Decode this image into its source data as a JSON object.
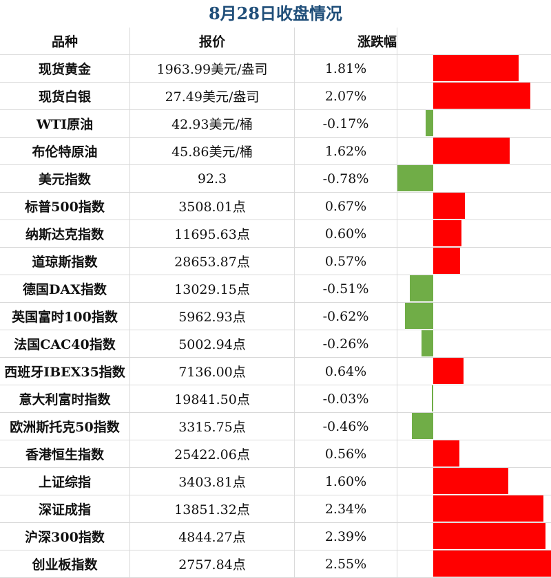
{
  "title": "8月28日收盘情况",
  "colors": {
    "up": "#ff0000",
    "down": "#70ad47",
    "title": "#1f4e79"
  },
  "headers": [
    "品种",
    "报价",
    "涨跌幅"
  ],
  "rows": [
    {
      "name": "现货黄金",
      "price": "1963.99美元/盎司",
      "change": "1.81%",
      "value": 1.81
    },
    {
      "name": "现货白银",
      "price": "27.49美元/盎司",
      "change": "2.07%",
      "value": 2.07
    },
    {
      "name": "WTI原油",
      "price": "42.93美元/桶",
      "change": "-0.17%",
      "value": -0.17
    },
    {
      "name": "布伦特原油",
      "price": "45.86美元/桶",
      "change": "1.62%",
      "value": 1.62
    },
    {
      "name": "美元指数",
      "price": "92.3",
      "change": "-0.78%",
      "value": -0.78
    },
    {
      "name": "标普500指数",
      "price": "3508.01点",
      "change": "0.67%",
      "value": 0.67
    },
    {
      "name": "纳斯达克指数",
      "price": "11695.63点",
      "change": "0.60%",
      "value": 0.6
    },
    {
      "name": "道琼斯指数",
      "price": "28653.87点",
      "change": "0.57%",
      "value": 0.57
    },
    {
      "name": "德国DAX指数",
      "price": "13029.15点",
      "change": "-0.51%",
      "value": -0.51
    },
    {
      "name": "英国富时100指数",
      "price": "5962.93点",
      "change": "-0.62%",
      "value": -0.62
    },
    {
      "name": "法国CAC40指数",
      "price": "5002.94点",
      "change": "-0.26%",
      "value": -0.26
    },
    {
      "name": "西班牙IBEX35指数",
      "price": "7136.00点",
      "change": "0.64%",
      "value": 0.64
    },
    {
      "name": "意大利富时指数",
      "price": "19841.50点",
      "change": "-0.03%",
      "value": -0.03
    },
    {
      "name": "欧洲斯托克50指数",
      "price": "3315.75点",
      "change": "-0.46%",
      "value": -0.46
    },
    {
      "name": "香港恒生指数",
      "price": "25422.06点",
      "change": "0.56%",
      "value": 0.56
    },
    {
      "name": "上证综指",
      "price": "3403.81点",
      "change": "1.60%",
      "value": 1.6
    },
    {
      "name": "深证成指",
      "price": "13851.32点",
      "change": "2.34%",
      "value": 2.34
    },
    {
      "name": "沪深300指数",
      "price": "4844.27点",
      "change": "2.39%",
      "value": 2.39
    },
    {
      "name": "创业板指数",
      "price": "2757.84点",
      "change": "2.55%",
      "value": 2.55
    }
  ],
  "chart_data": {
    "type": "bar",
    "orientation": "horizontal",
    "categories": [
      "现货黄金",
      "现货白银",
      "WTI原油",
      "布伦特原油",
      "美元指数",
      "标普500指数",
      "纳斯达克指数",
      "道琼斯指数",
      "德国DAX指数",
      "英国富时100指数",
      "法国CAC40指数",
      "西班牙IBEX35指数",
      "意大利富时指数",
      "欧洲斯托克50指数",
      "香港恒生指数",
      "上证综指",
      "深证成指",
      "沪深300指数",
      "创业板指数"
    ],
    "values": [
      1.81,
      2.07,
      -0.17,
      1.62,
      -0.78,
      0.67,
      0.6,
      0.57,
      -0.51,
      -0.62,
      -0.26,
      0.64,
      -0.03,
      -0.46,
      0.56,
      1.6,
      2.34,
      2.39,
      2.55
    ],
    "title": "8月28日收盘情况",
    "xlim": [
      -0.78,
      2.55
    ],
    "grid": false
  }
}
